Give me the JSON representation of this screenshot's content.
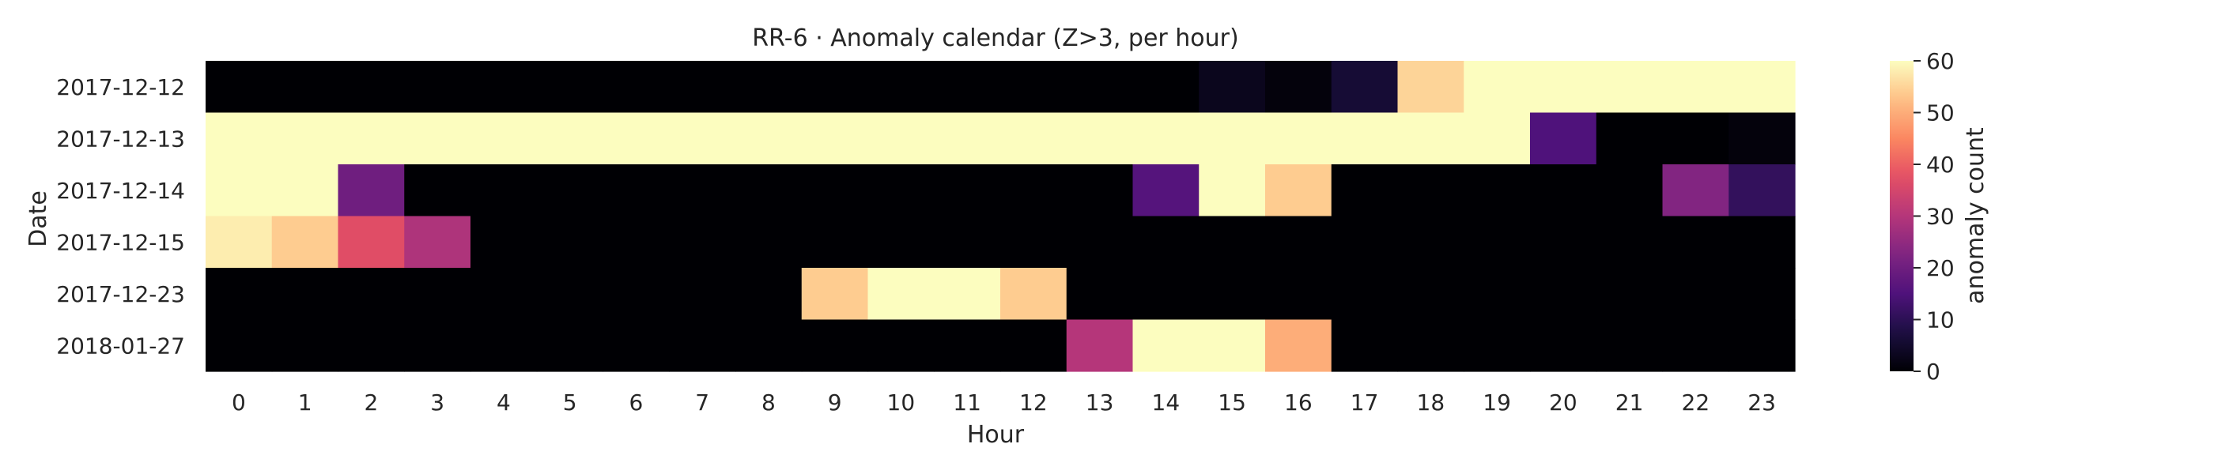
{
  "chart_data": {
    "type": "heatmap",
    "title": "RR-6 · Anomaly calendar (Z>3, per hour)",
    "xlabel": "Hour",
    "ylabel": "Date",
    "x": [
      "0",
      "1",
      "2",
      "3",
      "4",
      "5",
      "6",
      "7",
      "8",
      "9",
      "10",
      "11",
      "12",
      "13",
      "14",
      "15",
      "16",
      "17",
      "18",
      "19",
      "20",
      "21",
      "22",
      "23"
    ],
    "y": [
      "2017-12-12",
      "2017-12-13",
      "2017-12-14",
      "2017-12-15",
      "2017-12-23",
      "2018-01-27"
    ],
    "values": [
      [
        0,
        0,
        0,
        0,
        0,
        0,
        0,
        0,
        0,
        0,
        0,
        0,
        0,
        0,
        0,
        3,
        1,
        6,
        55,
        60,
        60,
        60,
        60,
        60
      ],
      [
        60,
        60,
        60,
        60,
        60,
        60,
        60,
        60,
        60,
        60,
        60,
        60,
        60,
        60,
        60,
        60,
        60,
        60,
        60,
        60,
        15,
        0,
        0,
        1
      ],
      [
        60,
        60,
        20,
        0,
        0,
        0,
        0,
        0,
        0,
        0,
        0,
        0,
        0,
        0,
        16,
        60,
        54,
        0,
        0,
        0,
        0,
        0,
        23,
        11
      ],
      [
        58,
        54,
        37,
        29,
        0,
        0,
        0,
        0,
        0,
        0,
        0,
        0,
        0,
        0,
        0,
        0,
        0,
        0,
        0,
        0,
        0,
        0,
        0,
        0
      ],
      [
        0,
        0,
        0,
        0,
        0,
        0,
        0,
        0,
        0,
        54,
        60,
        60,
        54,
        0,
        0,
        0,
        0,
        0,
        0,
        0,
        0,
        0,
        0,
        0
      ],
      [
        0,
        0,
        0,
        0,
        0,
        0,
        0,
        0,
        0,
        0,
        0,
        0,
        0,
        30,
        60,
        60,
        50,
        0,
        0,
        0,
        0,
        0,
        0,
        0
      ]
    ],
    "colorbar": {
      "label": "anomaly count",
      "range": [
        0,
        60
      ],
      "ticks": [
        "0",
        "10",
        "20",
        "30",
        "40",
        "50",
        "60"
      ],
      "colormap": "magma"
    },
    "grid": false
  }
}
